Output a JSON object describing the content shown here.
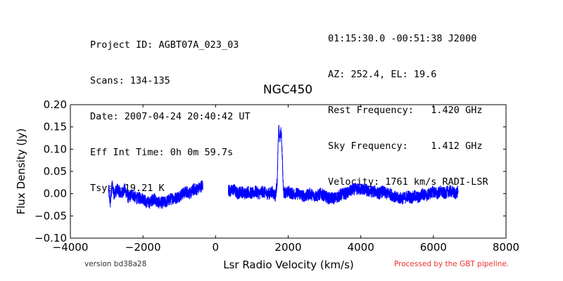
{
  "header": {
    "left": [
      "Project ID: AGBT07A_023_03",
      "Scans: 134-135",
      "Date: 2007-04-24 20:40:42 UT",
      "Eff Int Time: 0h 0m 59.7s",
      "Tsys: 19.21 K"
    ],
    "right": [
      "01:15:30.0 -00:51:38 J2000",
      "AZ: 252.4, EL: 19.6",
      "Rest Frequency:   1.420 GHz",
      "Sky Frequency:    1.412 GHz",
      "Velocity: 1761 km/s RADI-LSR"
    ]
  },
  "footer": {
    "version": "version bd38a28",
    "processed": "Processed by the GBT pipeline."
  },
  "chart_data": {
    "type": "line",
    "title": "NGC450",
    "xlabel": "Lsr Radio Velocity (km/s)",
    "ylabel": "Flux Density (Jy)",
    "xlim": [
      -4000,
      8000
    ],
    "ylim": [
      -0.1,
      0.2
    ],
    "xticks": [
      -4000,
      -2000,
      0,
      2000,
      4000,
      6000,
      8000
    ],
    "xtick_labels": [
      "−4000",
      "−2000",
      "0",
      "2000",
      "4000",
      "6000",
      "8000"
    ],
    "yticks": [
      -0.1,
      -0.05,
      0.0,
      0.05,
      0.1,
      0.15,
      0.2
    ],
    "ytick_labels": [
      "−0.10",
      "−0.05",
      "0.00",
      "0.05",
      "0.10",
      "0.15",
      "0.20"
    ],
    "color": "#0000ff",
    "grid": false,
    "series": [
      {
        "segments": [
          {
            "x": [
              -2950,
              -2900,
              -2850,
              -2800,
              -2700,
              -2600,
              -2500,
              -2400,
              -2300,
              -2200,
              -2100,
              -2000,
              -1900,
              -1800,
              -1700,
              -1600,
              -1500,
              -1400,
              -1300,
              -1200,
              -1100,
              -1000,
              -900,
              -800,
              -700,
              -600,
              -500,
              -420,
              -350
            ],
            "y": [
              0.01,
              -0.02,
              0.02,
              0.0,
              0.01,
              0.0,
              0.01,
              -0.01,
              0.0,
              -0.01,
              -0.01,
              -0.01,
              -0.02,
              -0.02,
              -0.01,
              -0.02,
              -0.02,
              -0.02,
              -0.015,
              -0.01,
              -0.01,
              -0.005,
              0.0,
              0.005,
              0.0,
              0.01,
              0.01,
              0.015,
              0.02
            ]
          },
          {
            "x": [
              350,
              400,
              500,
              600,
              700,
              800,
              900,
              1000,
              1100,
              1200,
              1300,
              1400,
              1500,
              1550,
              1600,
              1650,
              1700,
              1720,
              1740,
              1760,
              1780,
              1800,
              1820,
              1840,
              1860,
              1880,
              1900,
              1950,
              2000,
              2100,
              2200,
              2300,
              2400,
              2500,
              2600,
              2700,
              2800,
              2900,
              3000,
              3100,
              3200,
              3300,
              3400,
              3500,
              3600,
              3700,
              3800,
              3900,
              4000,
              4100,
              4200,
              4300,
              4400,
              4500,
              4600,
              4700,
              4800,
              4900,
              5000,
              5100,
              5200,
              5300,
              5400,
              5500,
              5600,
              5700,
              5800,
              5900,
              6000,
              6100,
              6200,
              6300,
              6400,
              6500,
              6600,
              6680
            ],
            "y": [
              0.01,
              0.005,
              0.01,
              0.0,
              0.005,
              0.0,
              0.005,
              0.0,
              0.005,
              0.0,
              0.005,
              0.0,
              0.0,
              0.005,
              0.0,
              -0.005,
              0.03,
              0.1,
              0.15,
              0.12,
              0.13,
              0.14,
              0.12,
              0.08,
              0.02,
              0.0,
              0.005,
              0.0,
              0.005,
              0.0,
              0.0,
              0.0,
              -0.005,
              -0.005,
              0.0,
              -0.005,
              -0.005,
              0.0,
              -0.005,
              -0.01,
              -0.01,
              -0.01,
              -0.005,
              0.0,
              0.0,
              0.005,
              0.01,
              0.01,
              0.01,
              0.01,
              0.005,
              0.005,
              0.005,
              0.0,
              0.005,
              0.0,
              0.0,
              -0.005,
              -0.01,
              -0.01,
              -0.01,
              -0.005,
              -0.01,
              -0.005,
              -0.01,
              0.0,
              -0.005,
              0.0,
              0.005,
              0.0,
              0.005,
              0.0,
              0.005,
              0.005,
              0.0,
              0.005
            ]
          }
        ]
      }
    ]
  }
}
